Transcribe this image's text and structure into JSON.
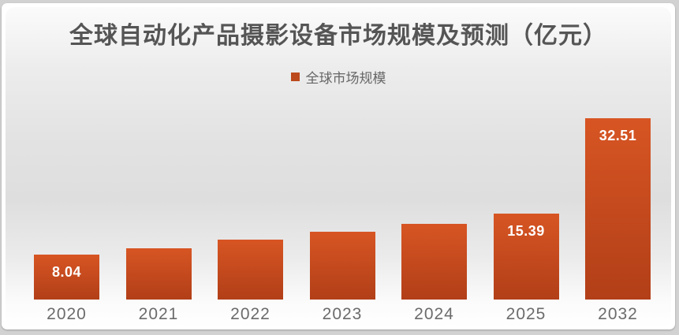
{
  "chart_data": {
    "type": "bar",
    "title": "全球自动化产品摄影设备市场规模及预测（亿元）",
    "legend": [
      "全球市场规模"
    ],
    "legend_position": "top",
    "categories": [
      "2020",
      "2021",
      "2022",
      "2023",
      "2024",
      "2025",
      "2032"
    ],
    "values": [
      8.04,
      9.2,
      10.7,
      12.2,
      13.6,
      15.39,
      32.51
    ],
    "data_labels": [
      "8.04",
      null,
      null,
      null,
      null,
      "15.39",
      "32.51"
    ],
    "unit": "亿元",
    "xlabel": "",
    "ylabel": "",
    "ylim": [
      0,
      34
    ],
    "grid": false,
    "y_axis_shown": false,
    "colors": {
      "bar_gradient_top": "#d75523",
      "bar_gradient_bottom": "#b23f18",
      "legend_swatch": "#bc4a1e",
      "data_label_text": "#ffffff",
      "title_text": "#555555",
      "legend_text": "#666666",
      "axis_label_text": "#6b6b6b"
    }
  }
}
